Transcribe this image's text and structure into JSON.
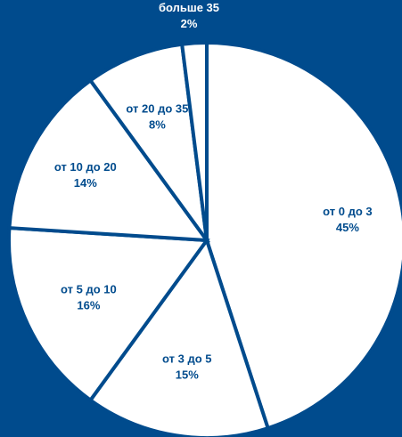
{
  "chart_data": {
    "type": "pie",
    "title": "",
    "categories": [
      "от 0 до 3",
      "от 3 до 5",
      "от 5 до 10",
      "от 10 до 20",
      "от 20 до 35",
      "больше 35"
    ],
    "values": [
      45,
      15,
      16,
      14,
      8,
      2
    ],
    "value_labels": [
      "45%",
      "15%",
      "16%",
      "14%",
      "8%",
      "2%"
    ],
    "start_angle_deg": 0,
    "direction": "clockwise",
    "legend": "none",
    "colors": {
      "background": "#004B8D",
      "slice_fill": "#FFFFFF",
      "slice_stroke": "#004B8D",
      "label_on_slice": "#004B8D",
      "label_outside": "#FFFFFF"
    }
  }
}
